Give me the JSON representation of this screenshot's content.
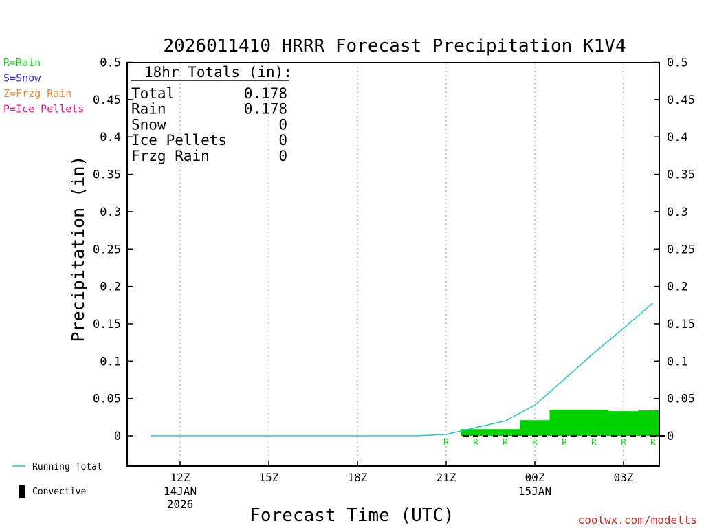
{
  "chart_data": {
    "type": "bar",
    "title": "2026011410 HRRR Forecast Precipitation K1V4",
    "xlabel": "Forecast Time (UTC)",
    "ylabel": "Precipitation (in)",
    "ylim": [
      -0.04,
      0.5
    ],
    "y_ticks": [
      "0",
      "0.05",
      "0.1",
      "0.15",
      "0.2",
      "0.25",
      "0.3",
      "0.35",
      "0.4",
      "0.45",
      "0.5"
    ],
    "y_tick_values": [
      0,
      0.05,
      0.1,
      0.15,
      0.2,
      0.25,
      0.3,
      0.35,
      0.4,
      0.45,
      0.5
    ],
    "xlim_hours": [
      10,
      28
    ],
    "x_ticks": [
      {
        "hour": 12,
        "label": "12Z",
        "date": "14JAN",
        "year": "2026"
      },
      {
        "hour": 15,
        "label": "15Z",
        "date": "",
        "year": ""
      },
      {
        "hour": 18,
        "label": "18Z",
        "date": "",
        "year": ""
      },
      {
        "hour": 21,
        "label": "21Z",
        "date": "",
        "year": ""
      },
      {
        "hour": 24,
        "label": "00Z",
        "date": "15JAN",
        "year": ""
      },
      {
        "hour": 27,
        "label": "03Z",
        "date": "",
        "year": ""
      }
    ],
    "forecast_hours": [
      11,
      12,
      13,
      14,
      15,
      16,
      17,
      18,
      19,
      20,
      21,
      22,
      23,
      24,
      25,
      26,
      27,
      28
    ],
    "hourly_precip": [
      0,
      0,
      0,
      0,
      0,
      0,
      0,
      0,
      0,
      0,
      0.001,
      0.009,
      0.009,
      0.021,
      0.035,
      0.035,
      0.033,
      0.034
    ],
    "running_total": [
      0,
      0,
      0,
      0,
      0,
      0,
      0,
      0,
      0,
      0,
      0.002,
      0.011,
      0.02,
      0.041,
      0.076,
      0.111,
      0.144,
      0.178
    ],
    "precip_type_markers": [
      {
        "hour": 21,
        "type": "R"
      },
      {
        "hour": 22,
        "type": "R"
      },
      {
        "hour": 23,
        "type": "R"
      },
      {
        "hour": 24,
        "type": "R"
      },
      {
        "hour": 25,
        "type": "R"
      },
      {
        "hour": 26,
        "type": "R"
      },
      {
        "hour": 27,
        "type": "R"
      },
      {
        "hour": 28,
        "type": "R"
      }
    ],
    "totals_box": {
      "heading": "18hr Totals (in):",
      "rows": [
        {
          "label": "Total",
          "value": "0.178"
        },
        {
          "label": "Rain",
          "value": "0.178"
        },
        {
          "label": "Snow",
          "value": "0"
        },
        {
          "label": "Ice Pellets",
          "value": "0"
        },
        {
          "label": "Frzg Rain",
          "value": "0"
        }
      ]
    },
    "type_legend": [
      {
        "text": "R=Rain",
        "color": "#22dd22"
      },
      {
        "text": "S=Snow",
        "color": "#3333ee"
      },
      {
        "text": "Z=Frzg Rain",
        "color": "#ee8833"
      },
      {
        "text": "P=Ice Pellets",
        "color": "#ee1188"
      }
    ],
    "series_legend": [
      {
        "name": "Running Total",
        "color": "#1ec8c8",
        "kind": "line"
      },
      {
        "name": "Convective",
        "color": "#000000",
        "kind": "box"
      }
    ],
    "bar_color": "#00d200",
    "line_color": "#1ec8c8",
    "credit": "coolwx.com/modelts",
    "credit_color": "#cc2222"
  }
}
